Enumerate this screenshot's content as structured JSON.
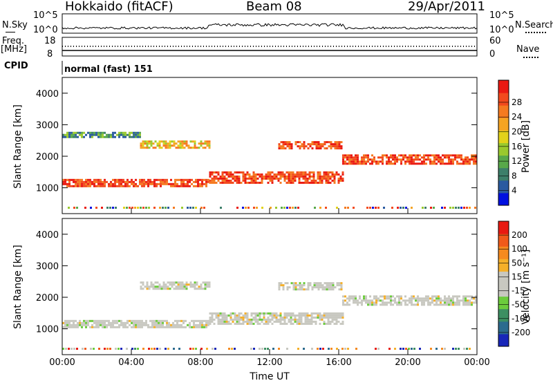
{
  "header": {
    "station": "Hokkaido (fitACF)",
    "beam": "Beam 08",
    "date": "29/Apr/2011"
  },
  "noise_panel": {
    "left_label": "N.Sky",
    "right_label": "N.Search",
    "left_ticks": [
      "10^5",
      "10^0"
    ],
    "right_ticks": [
      "10^5",
      "10^0"
    ]
  },
  "freq_panel": {
    "label_line1": "Freq.",
    "label_line2": "[MHz]",
    "left_ticks": [
      "18",
      "8"
    ],
    "right_label": "Nave",
    "right_ticks": [
      "60",
      "0"
    ]
  },
  "cpid_panel": {
    "label": "CPID",
    "text": "normal (fast) 151"
  },
  "chart_data": [
    {
      "type": "heatmap",
      "name": "power",
      "ylabel": "Slant Range [km]",
      "ylim": [
        180,
        4500
      ],
      "y_ticks": [
        1000,
        2000,
        3000,
        4000
      ],
      "x_ticks": [
        "00:00",
        "04:00",
        "08:00",
        "12:00",
        "16:00",
        "20:00",
        "00:00"
      ],
      "colorbar": {
        "label": "Power [dB]",
        "ticks": [
          "4",
          "8",
          "12",
          "16",
          "20",
          "24",
          "28"
        ],
        "colors": [
          "#0010e0",
          "#2a5aa0",
          "#3d7f6a",
          "#58a84a",
          "#9ac92e",
          "#e2d21a",
          "#f5a423",
          "#f57a20",
          "#f24a1d",
          "#ea1a12"
        ]
      },
      "bands": [
        {
          "start_h": 0.0,
          "end_h": 8.5,
          "center_km": 1150,
          "width_km": 260,
          "level": "high"
        },
        {
          "start_h": 8.5,
          "end_h": 16.2,
          "center_km": 1350,
          "width_km": 340,
          "level": "high"
        },
        {
          "start_h": 12.5,
          "end_h": 16.2,
          "center_km": 2350,
          "width_km": 260,
          "level": "high"
        },
        {
          "start_h": 16.2,
          "end_h": 24.0,
          "center_km": 1900,
          "width_km": 320,
          "level": "high"
        },
        {
          "start_h": 4.5,
          "end_h": 8.5,
          "center_km": 2400,
          "width_km": 200,
          "level": "medium"
        },
        {
          "start_h": 0.0,
          "end_h": 4.5,
          "center_km": 2700,
          "width_km": 150,
          "level": "low"
        }
      ]
    },
    {
      "type": "heatmap",
      "name": "velocity",
      "ylabel": "Slant Range [km]",
      "xlabel": "Time UT",
      "ylim": [
        180,
        4500
      ],
      "y_ticks": [
        1000,
        2000,
        3000,
        4000
      ],
      "x_ticks": [
        "00:00",
        "04:00",
        "08:00",
        "12:00",
        "16:00",
        "20:00",
        "00:00"
      ],
      "colorbar": {
        "label": "Velocity [m s⁻¹]",
        "ticks": [
          "200",
          "100",
          "50",
          "15",
          "-15",
          "-50",
          "-100",
          "-200"
        ],
        "colors": [
          "#1826b8",
          "#2c6b8e",
          "#3d8f62",
          "#6ccc3c",
          "#c8c8c0",
          "#c8c8c0",
          "#f5b02a",
          "#f58a1f",
          "#f05a1a",
          "#e81a12"
        ]
      },
      "bands": [
        {
          "start_h": 0.0,
          "end_h": 8.5,
          "center_km": 1150,
          "width_km": 260,
          "level": "ground"
        },
        {
          "start_h": 8.5,
          "end_h": 16.2,
          "center_km": 1350,
          "width_km": 340,
          "level": "ground"
        },
        {
          "start_h": 12.5,
          "end_h": 16.2,
          "center_km": 2350,
          "width_km": 260,
          "level": "ground"
        },
        {
          "start_h": 16.2,
          "end_h": 24.0,
          "center_km": 1900,
          "width_km": 320,
          "level": "ground"
        },
        {
          "start_h": 4.5,
          "end_h": 8.5,
          "center_km": 2400,
          "width_km": 200,
          "level": "ground"
        }
      ]
    }
  ]
}
